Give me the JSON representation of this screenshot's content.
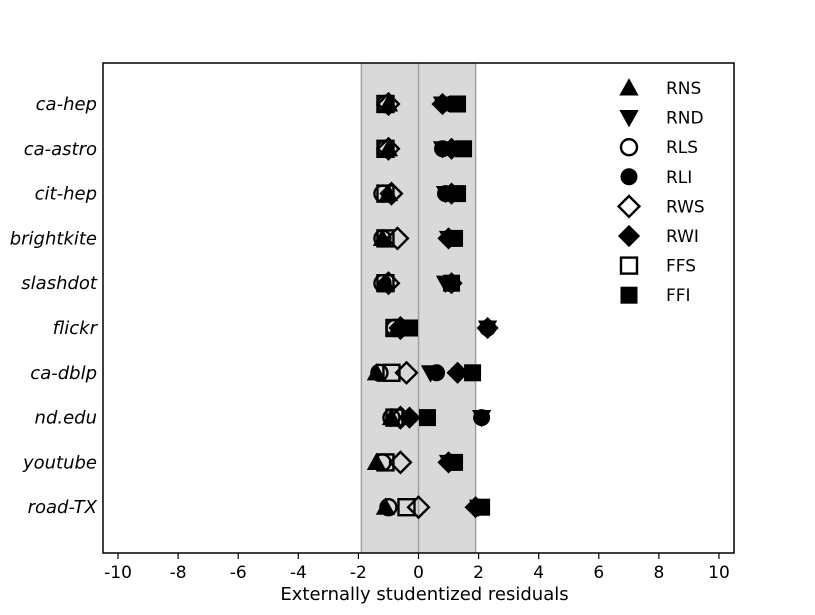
{
  "chart_data": {
    "type": "scatter",
    "title": "",
    "xlabel": "Externally studentized residuals",
    "ylabel": "",
    "xlim": [
      -10.5,
      10.5
    ],
    "xticks": [
      -10,
      -8,
      -6,
      -4,
      -2,
      0,
      2,
      4,
      6,
      8,
      10
    ],
    "shaded_band": [
      -1.9,
      1.9
    ],
    "band_color": "#d9d9d9",
    "band_edge_color": "#a0a0a0",
    "grid": false,
    "legend_position": "top-right",
    "categories": [
      "ca-hep",
      "ca-astro",
      "cit-hep",
      "brightkite",
      "slashdot",
      "flickr",
      "ca-dblp",
      "nd.edu",
      "youtube",
      "road-TX"
    ],
    "series": [
      {
        "name": "RNS",
        "marker": "triangle-up",
        "fill": "filled",
        "values": [
          -1.0,
          -1.0,
          -1.0,
          -1.2,
          -1.1,
          -0.7,
          -1.4,
          -0.9,
          -1.4,
          -1.1
        ]
      },
      {
        "name": "RND",
        "marker": "triangle-down",
        "fill": "filled",
        "values": [
          0.8,
          0.8,
          0.9,
          1.0,
          0.9,
          2.3,
          0.4,
          2.1,
          1.0,
          2.0
        ]
      },
      {
        "name": "RLS",
        "marker": "circle",
        "fill": "open",
        "values": [
          -1.1,
          -1.1,
          -1.2,
          -1.2,
          -1.2,
          -0.8,
          -1.3,
          -0.9,
          -1.2,
          -1.0
        ]
      },
      {
        "name": "RLI",
        "marker": "circle",
        "fill": "filled",
        "values": [
          1.1,
          0.8,
          0.9,
          1.1,
          1.1,
          2.3,
          0.6,
          2.1,
          1.1,
          2.0
        ]
      },
      {
        "name": "RWS",
        "marker": "diamond",
        "fill": "open",
        "values": [
          -1.0,
          -1.0,
          -0.9,
          -0.7,
          -1.0,
          -0.6,
          -0.4,
          -0.6,
          -0.6,
          0.0
        ]
      },
      {
        "name": "RWI",
        "marker": "diamond",
        "fill": "filled",
        "values": [
          0.8,
          1.1,
          1.1,
          1.0,
          1.1,
          2.3,
          1.3,
          -0.3,
          1.0,
          1.9
        ]
      },
      {
        "name": "FFS",
        "marker": "square",
        "fill": "open",
        "values": [
          -1.1,
          -1.1,
          -1.1,
          -1.1,
          -1.1,
          -0.8,
          -0.9,
          -0.8,
          -1.1,
          -0.4
        ]
      },
      {
        "name": "FFI",
        "marker": "square",
        "fill": "filled",
        "values": [
          1.3,
          1.5,
          1.3,
          1.2,
          1.1,
          -0.3,
          1.8,
          0.3,
          1.2,
          2.1
        ]
      }
    ]
  }
}
